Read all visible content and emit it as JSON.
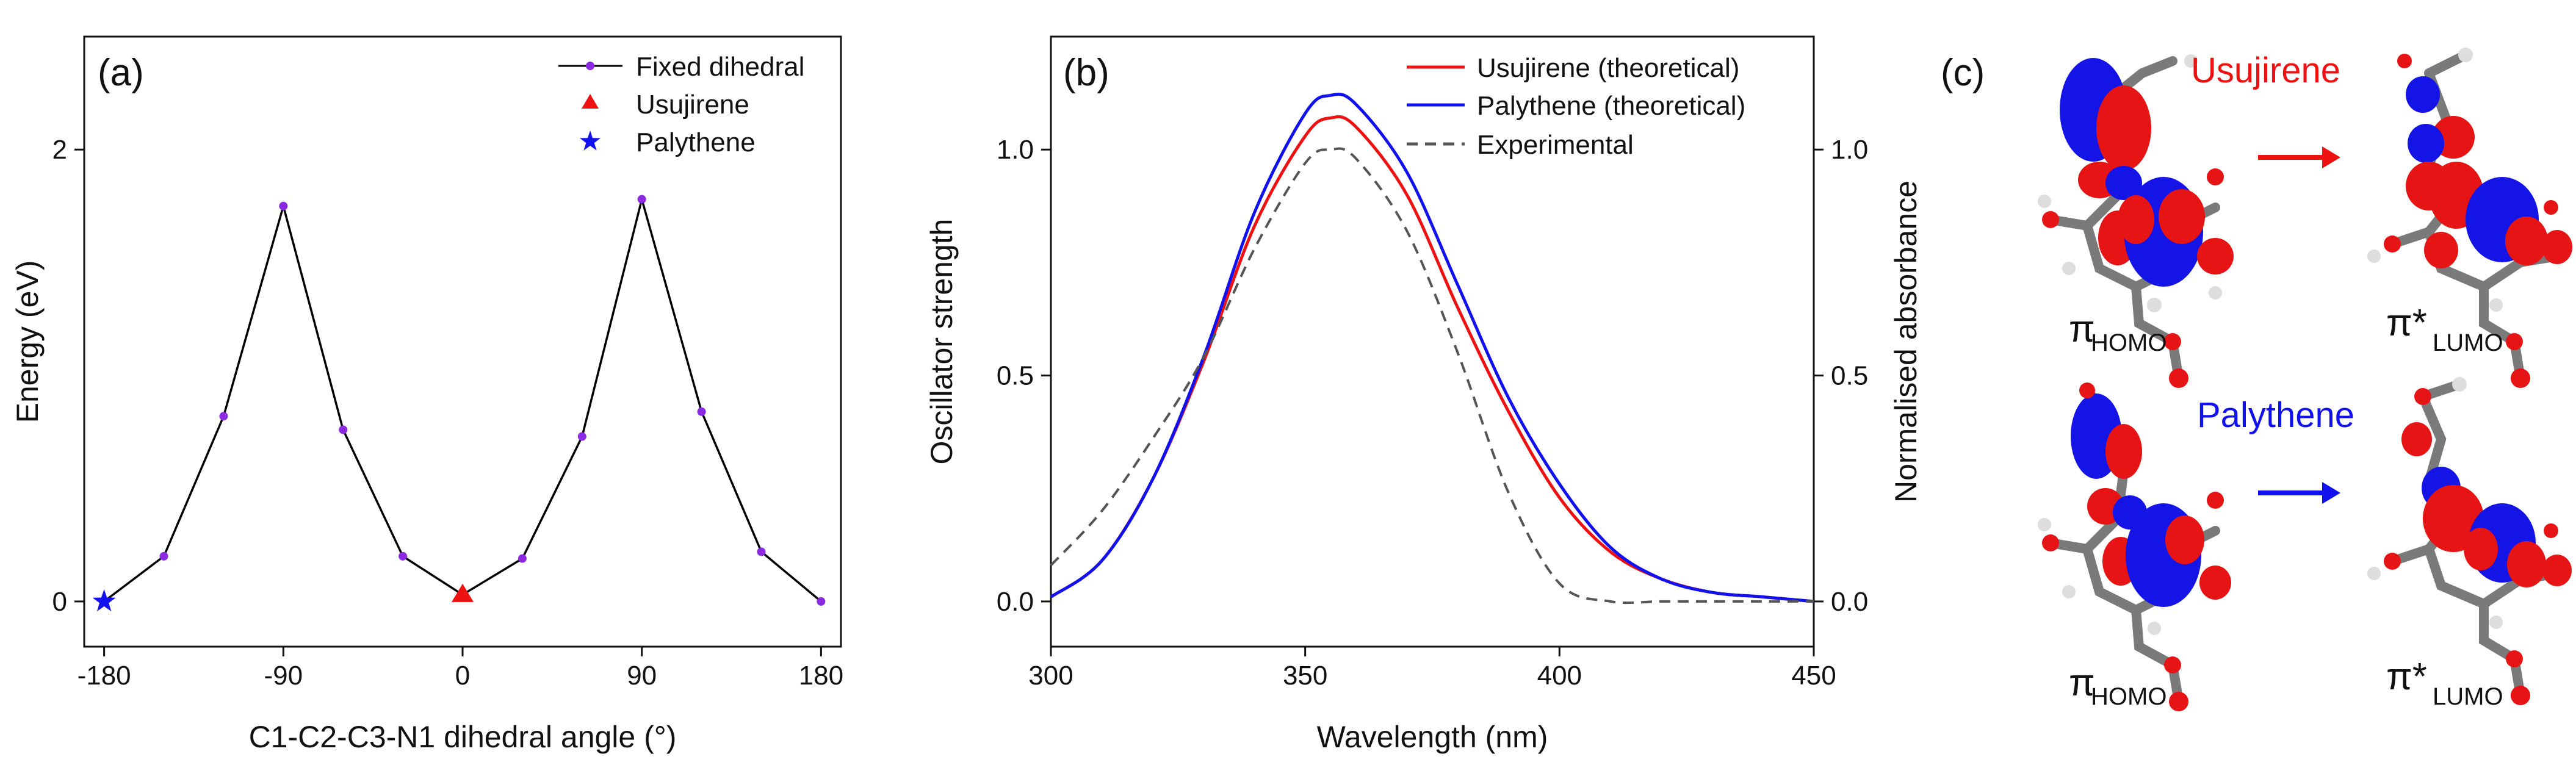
{
  "panel_labels": {
    "a": "(a)",
    "b": "(b)",
    "c": "(c)"
  },
  "chart_data": [
    {
      "type": "line",
      "panel": "(a)",
      "xlabel": "C1-C2-C3-N1 dihedral angle (°)",
      "ylabel": "Energy (eV)",
      "xlim": [
        -190,
        190
      ],
      "ylim": [
        -0.2,
        2.5
      ],
      "x_ticks": [
        -180,
        -90,
        0,
        90,
        180
      ],
      "x_tick_labels": [
        "-180",
        "-90",
        "0",
        "90",
        "180"
      ],
      "y_ticks": [
        0,
        2
      ],
      "y_tick_labels": [
        "0",
        "2"
      ],
      "legend_position": "top-right",
      "series": [
        {
          "name": "Fixed dihedral",
          "color": "#000000",
          "marker_color": "#8a2be2",
          "x": [
            -180,
            -150,
            -120,
            -90,
            -60,
            -30,
            0,
            30,
            60,
            90,
            120,
            150,
            180
          ],
          "y": [
            0.0,
            0.2,
            0.82,
            1.75,
            0.76,
            0.2,
            0.03,
            0.19,
            0.73,
            1.78,
            0.84,
            0.22,
            0.0
          ]
        },
        {
          "name": "Usujirene",
          "marker": "triangle",
          "color": "#ee1111",
          "x": [
            0
          ],
          "y": [
            0.03
          ]
        },
        {
          "name": "Palythene",
          "marker": "star",
          "color": "#1111ee",
          "x": [
            -180
          ],
          "y": [
            0.0
          ]
        }
      ]
    },
    {
      "type": "line",
      "panel": "(b)",
      "xlabel": "Wavelength (nm)",
      "ylabel": "Oscillator strength",
      "ylabel_right": "Normalised absorbance",
      "xlim": [
        300,
        450
      ],
      "ylim": [
        -0.1,
        1.25
      ],
      "x_ticks": [
        300,
        350,
        400,
        450
      ],
      "x_tick_labels": [
        "300",
        "350",
        "400",
        "450"
      ],
      "y_ticks": [
        0,
        0.5,
        1.0
      ],
      "y_tick_labels": [
        "0.0",
        "0.5",
        "1.0"
      ],
      "y_right_ticks": [
        0,
        0.5,
        1.0
      ],
      "y_right_tick_labels": [
        "0.0",
        "0.5",
        "1.0"
      ],
      "legend_position": "top-right",
      "series": [
        {
          "name": "Usujirene (theoretical)",
          "color": "#ee1111",
          "dash": false,
          "x": [
            300,
            310,
            320,
            330,
            340,
            350,
            355,
            360,
            370,
            380,
            390,
            400,
            410,
            420,
            430,
            440,
            450
          ],
          "y": [
            0.01,
            0.09,
            0.27,
            0.53,
            0.83,
            1.03,
            1.07,
            1.05,
            0.9,
            0.65,
            0.42,
            0.23,
            0.11,
            0.05,
            0.02,
            0.01,
            0.0
          ]
        },
        {
          "name": "Palythene (theoretical)",
          "color": "#1111ee",
          "dash": false,
          "x": [
            300,
            310,
            320,
            330,
            340,
            350,
            355,
            360,
            370,
            380,
            390,
            400,
            410,
            420,
            430,
            440,
            450
          ],
          "y": [
            0.01,
            0.09,
            0.27,
            0.54,
            0.86,
            1.08,
            1.12,
            1.1,
            0.95,
            0.7,
            0.45,
            0.26,
            0.12,
            0.05,
            0.02,
            0.01,
            0.0
          ]
        },
        {
          "name": "Experimental",
          "color": "#555555",
          "dash": true,
          "x": [
            300,
            310,
            320,
            330,
            340,
            350,
            355,
            360,
            370,
            380,
            390,
            400,
            410,
            420,
            430,
            440,
            450
          ],
          "y": [
            0.08,
            0.2,
            0.36,
            0.54,
            0.78,
            0.97,
            1.0,
            0.98,
            0.82,
            0.55,
            0.24,
            0.04,
            0.0,
            0.0,
            0.0,
            0.0,
            0.0
          ]
        }
      ]
    }
  ],
  "panel_c": {
    "molecules": [
      "Usujirene",
      "Palythene"
    ],
    "molecule_colors": [
      "#ee1111",
      "#1111ee"
    ],
    "homo_label": "π",
    "homo_sub": "HOMO",
    "lumo_label": "π*",
    "lumo_sub": "LUMO"
  }
}
